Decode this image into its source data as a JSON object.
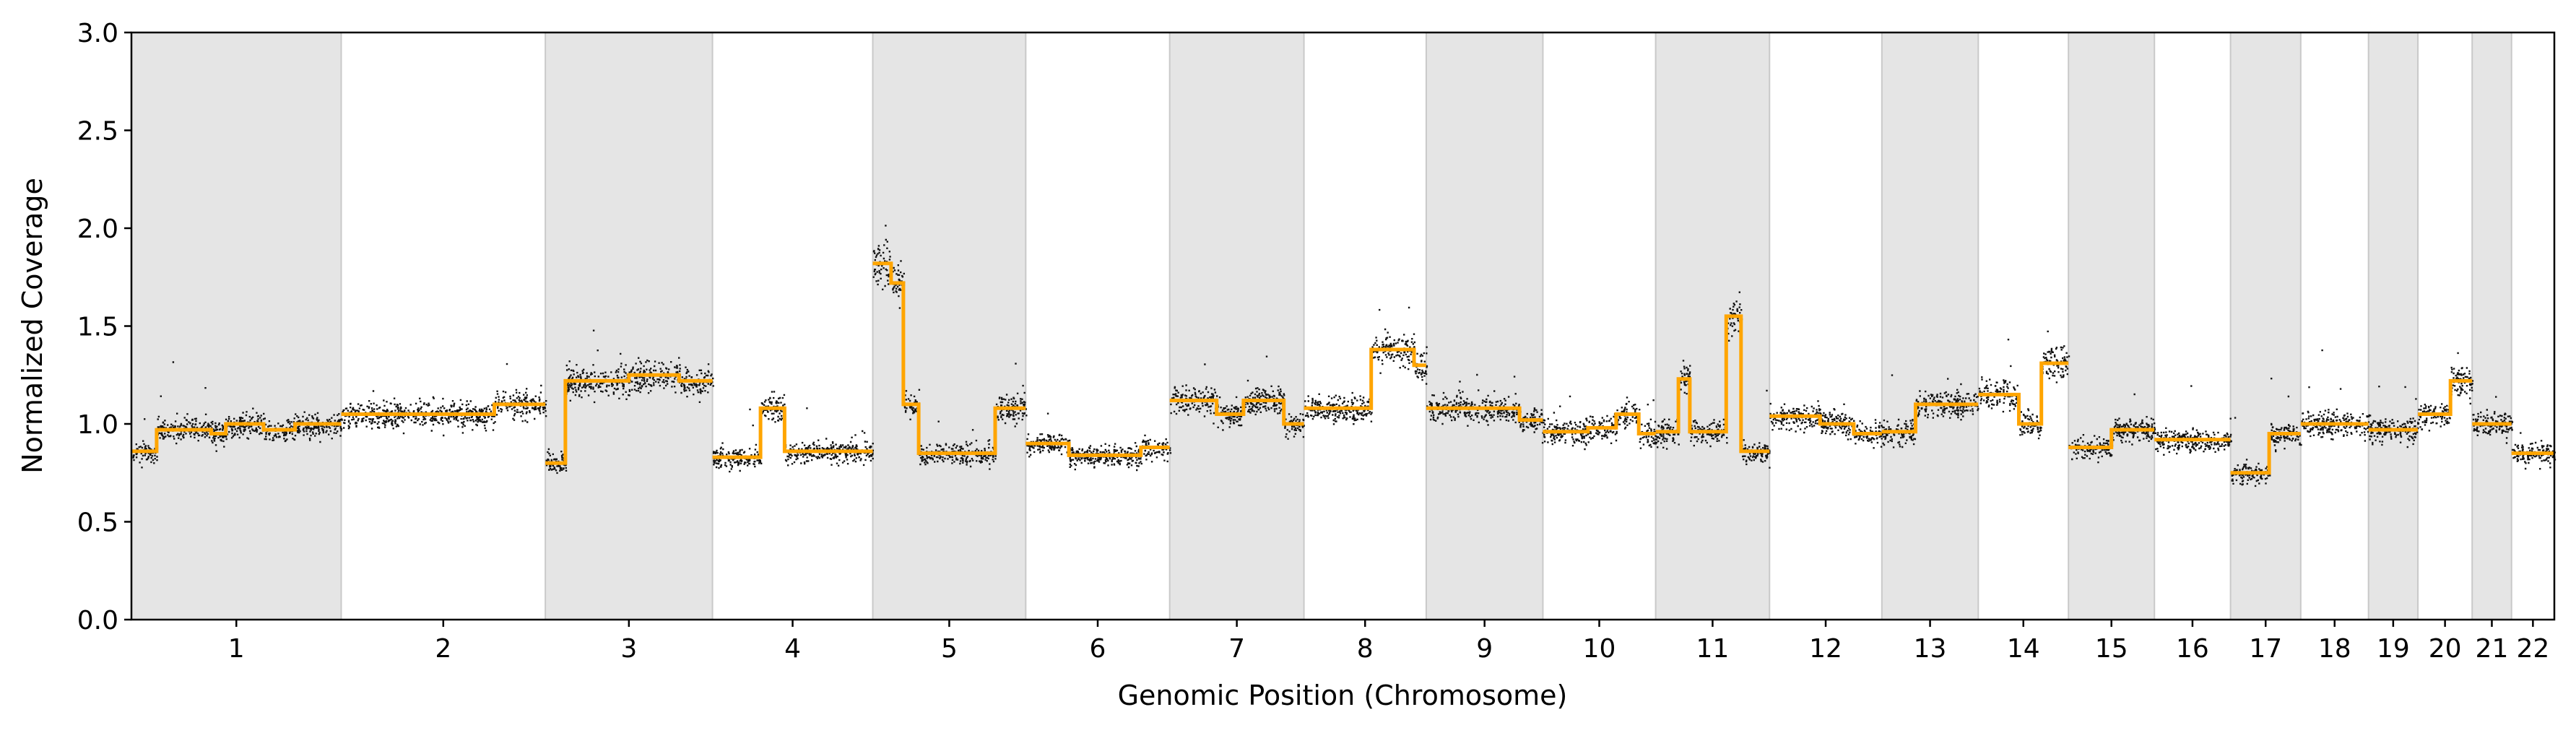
{
  "chart_data": {
    "type": "scatter",
    "title": "",
    "xlabel": "Genomic Position (Chromosome)",
    "ylabel": "Normalized Coverage",
    "ylim": [
      0,
      3
    ],
    "yticks": [
      0.0,
      0.5,
      1.0,
      1.5,
      2.0,
      2.5,
      3.0
    ],
    "ytick_labels": [
      "0.0",
      "0.5",
      "1.0",
      "1.5",
      "2.0",
      "2.5",
      "3.0"
    ],
    "grid": false,
    "legend": "none",
    "point_color": "#000000",
    "segment_color": "#ffa500",
    "band_color": "#e5e5e5",
    "chromosomes": [
      {
        "label": "1",
        "length": 248.9,
        "shaded": true,
        "segments": [
          [
            0,
            0.86
          ],
          [
            0.12,
            0.97
          ],
          [
            0.38,
            0.95
          ],
          [
            0.45,
            1.0
          ],
          [
            0.63,
            0.97
          ],
          [
            0.78,
            1.0
          ]
        ]
      },
      {
        "label": "2",
        "length": 242.2,
        "shaded": false,
        "segments": [
          [
            0,
            1.05
          ],
          [
            0.5,
            1.05
          ],
          [
            0.75,
            1.1
          ]
        ]
      },
      {
        "label": "3",
        "length": 198.3,
        "shaded": true,
        "segments": [
          [
            0,
            0.8
          ],
          [
            0.12,
            1.22
          ],
          [
            0.5,
            1.25
          ],
          [
            0.8,
            1.22
          ]
        ]
      },
      {
        "label": "4",
        "length": 190.2,
        "shaded": false,
        "segments": [
          [
            0,
            0.83
          ],
          [
            0.3,
            1.08
          ],
          [
            0.45,
            0.86
          ]
        ]
      },
      {
        "label": "5",
        "length": 181.5,
        "shaded": true,
        "segments": [
          [
            0,
            1.82
          ],
          [
            0.12,
            1.72
          ],
          [
            0.2,
            1.1
          ],
          [
            0.3,
            0.85
          ],
          [
            0.8,
            1.08
          ]
        ]
      },
      {
        "label": "6",
        "length": 170.8,
        "shaded": false,
        "segments": [
          [
            0,
            0.9
          ],
          [
            0.3,
            0.84
          ],
          [
            0.8,
            0.88
          ]
        ]
      },
      {
        "label": "7",
        "length": 159.3,
        "shaded": true,
        "segments": [
          [
            0,
            1.12
          ],
          [
            0.35,
            1.05
          ],
          [
            0.55,
            1.12
          ],
          [
            0.85,
            1.0
          ]
        ]
      },
      {
        "label": "8",
        "length": 145.1,
        "shaded": false,
        "segments": [
          [
            0,
            1.08
          ],
          [
            0.55,
            1.38
          ],
          [
            0.9,
            1.3
          ]
        ]
      },
      {
        "label": "9",
        "length": 138.4,
        "shaded": true,
        "segments": [
          [
            0,
            1.08
          ],
          [
            0.45,
            1.08
          ],
          [
            0.8,
            1.02
          ]
        ]
      },
      {
        "label": "10",
        "length": 133.8,
        "shaded": false,
        "segments": [
          [
            0,
            0.96
          ],
          [
            0.4,
            0.98
          ],
          [
            0.65,
            1.05
          ],
          [
            0.85,
            0.95
          ]
        ]
      },
      {
        "label": "11",
        "length": 135.1,
        "shaded": true,
        "segments": [
          [
            0,
            0.96
          ],
          [
            0.2,
            1.23
          ],
          [
            0.3,
            0.96
          ],
          [
            0.62,
            1.55
          ],
          [
            0.75,
            0.86
          ]
        ]
      },
      {
        "label": "12",
        "length": 133.3,
        "shaded": false,
        "segments": [
          [
            0,
            1.04
          ],
          [
            0.45,
            1.0
          ],
          [
            0.75,
            0.95
          ]
        ]
      },
      {
        "label": "13",
        "length": 114.4,
        "shaded": true,
        "segments": [
          [
            0,
            0.96
          ],
          [
            0.35,
            1.1
          ]
        ]
      },
      {
        "label": "14",
        "length": 107.0,
        "shaded": false,
        "segments": [
          [
            0,
            1.15
          ],
          [
            0.45,
            1.0
          ],
          [
            0.7,
            1.31
          ]
        ]
      },
      {
        "label": "15",
        "length": 102.0,
        "shaded": true,
        "segments": [
          [
            0,
            0.88
          ],
          [
            0.5,
            0.97
          ]
        ]
      },
      {
        "label": "16",
        "length": 90.3,
        "shaded": false,
        "segments": [
          [
            0,
            0.92
          ],
          [
            0.6,
            0.92
          ]
        ]
      },
      {
        "label": "17",
        "length": 83.3,
        "shaded": true,
        "segments": [
          [
            0,
            0.75
          ],
          [
            0.55,
            0.95
          ]
        ]
      },
      {
        "label": "18",
        "length": 80.4,
        "shaded": false,
        "segments": [
          [
            0,
            1.0
          ],
          [
            0.6,
            1.0
          ]
        ]
      },
      {
        "label": "19",
        "length": 58.6,
        "shaded": true,
        "segments": [
          [
            0,
            0.97
          ]
        ]
      },
      {
        "label": "20",
        "length": 64.4,
        "shaded": false,
        "segments": [
          [
            0,
            1.05
          ],
          [
            0.6,
            1.22
          ]
        ]
      },
      {
        "label": "21",
        "length": 46.7,
        "shaded": true,
        "segments": [
          [
            0,
            1.0
          ]
        ]
      },
      {
        "label": "22",
        "length": 50.8,
        "shaded": false,
        "segments": [
          [
            0,
            0.85
          ]
        ]
      }
    ]
  }
}
